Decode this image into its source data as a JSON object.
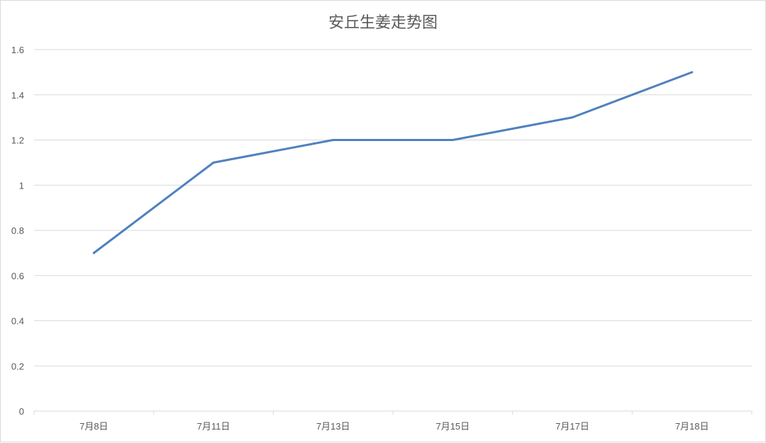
{
  "chart_data": {
    "type": "line",
    "title": "安丘生姜走势图",
    "categories": [
      "7月8日",
      "7月11日",
      "7月13日",
      "7月15日",
      "7月17日",
      "7月18日"
    ],
    "series": [
      {
        "values": [
          0.7,
          1.1,
          1.2,
          1.2,
          1.3,
          1.5
        ],
        "color": "#4F81BD"
      }
    ],
    "ylim": [
      0,
      1.6
    ],
    "yticks": [
      0,
      0.2,
      0.4,
      0.6,
      0.8,
      1,
      1.2,
      1.4,
      1.6
    ],
    "ytick_labels": [
      "0",
      "0.2",
      "0.4",
      "0.6",
      "0.8",
      "1",
      "1.2",
      "1.4",
      "1.6"
    ],
    "grid": true,
    "legend": "none"
  }
}
